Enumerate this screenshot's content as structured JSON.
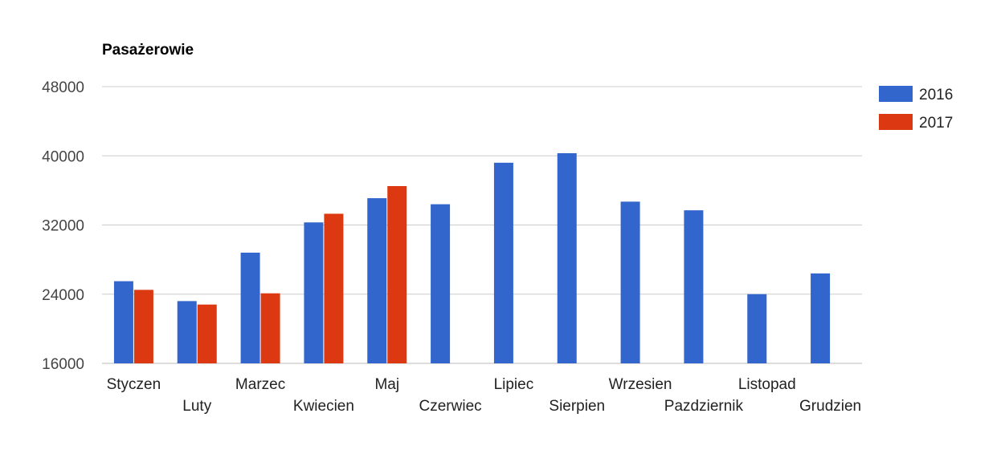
{
  "chart_data": {
    "type": "bar",
    "title": "Pasażerowie",
    "xlabel": "",
    "ylabel": "",
    "ylim": [
      16000,
      48000
    ],
    "yticks": [
      16000,
      24000,
      32000,
      40000,
      48000
    ],
    "grid": true,
    "legend_position": "right",
    "categories": [
      "Styczen",
      "Luty",
      "Marzec",
      "Kwiecien",
      "Maj",
      "Czerwiec",
      "Lipiec",
      "Sierpien",
      "Wrzesien",
      "Pazdziernik",
      "Listopad",
      "Grudzien"
    ],
    "series": [
      {
        "name": "2016",
        "color": "#3366cc",
        "values": [
          25500,
          23200,
          28800,
          32300,
          35100,
          34400,
          39200,
          40300,
          34700,
          33700,
          24000,
          26400
        ]
      },
      {
        "name": "2017",
        "color": "#dc3912",
        "values": [
          24500,
          22800,
          24100,
          33300,
          36500,
          null,
          null,
          null,
          null,
          null,
          null,
          null
        ]
      }
    ]
  }
}
